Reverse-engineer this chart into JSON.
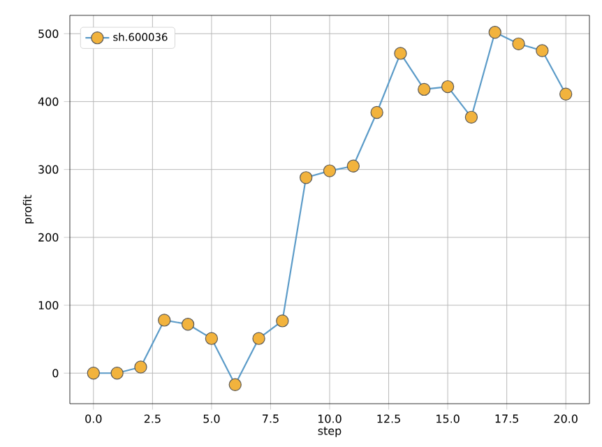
{
  "chart_data": {
    "type": "line",
    "xlabel": "step",
    "ylabel": "profit",
    "x": [
      0,
      1,
      2,
      3,
      4,
      5,
      6,
      7,
      8,
      9,
      10,
      11,
      12,
      13,
      14,
      15,
      16,
      17,
      18,
      19,
      20
    ],
    "series": [
      {
        "name": "sh.600036",
        "color": "#5b9bc8",
        "colors": [
          "#f2b33d",
          "#f2b33d",
          "#f2b33d",
          "#f2b33d",
          "#f2b33d",
          "#f2b33d",
          "#f2b33d",
          "#f2b33d",
          "#f2b33d",
          "#f2b33d",
          "#f2b33d",
          "#f2b33d",
          "#f2b33d",
          "#f2b33d",
          "#f2b33d",
          "#f2b33d",
          "#f2b33d",
          "#f2b33d",
          "#f2b33d",
          "#f2b33d",
          "#f2b33d"
        ],
        "values": [
          0,
          0,
          9,
          78,
          72,
          51,
          -17,
          51,
          77,
          288,
          298,
          305,
          384,
          471,
          418,
          422,
          377,
          502,
          485,
          475,
          411
        ]
      }
    ],
    "xlim": [
      -1,
      21
    ],
    "ylim": [
      -45,
      527
    ],
    "xticks": [
      {
        "value": 0,
        "label": "0.0"
      },
      {
        "value": 2.5,
        "label": "2.5"
      },
      {
        "value": 5,
        "label": "5.0"
      },
      {
        "value": 7.5,
        "label": "7.5"
      },
      {
        "value": 10,
        "label": "10.0"
      },
      {
        "value": 12.5,
        "label": "12.5"
      },
      {
        "value": 15,
        "label": "15.0"
      },
      {
        "value": 17.5,
        "label": "17.5"
      },
      {
        "value": 20,
        "label": "20.0"
      }
    ],
    "yticks": [
      0,
      100,
      200,
      300,
      400,
      500
    ],
    "grid": true,
    "legend": "top left",
    "marker": "circle",
    "line_style": "solid"
  }
}
